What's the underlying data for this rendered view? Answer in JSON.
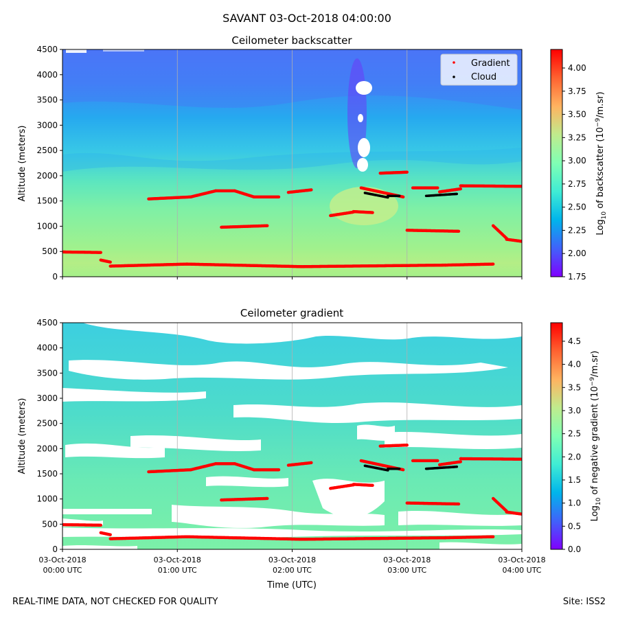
{
  "suptitle": "SAVANT 03-Oct-2018 04:00:00",
  "footer": {
    "left": "REAL-TIME DATA, NOT CHECKED FOR QUALITY",
    "right": "Site: ISS2"
  },
  "colors": {
    "gradient_marker": "#ff0000",
    "cloud_marker": "#000000",
    "grid": "#b0b0b0"
  },
  "x_ticks": [
    {
      "date": "03-Oct-2018",
      "time": "00:00 UTC"
    },
    {
      "date": "03-Oct-2018",
      "time": "01:00 UTC"
    },
    {
      "date": "03-Oct-2018",
      "time": "02:00 UTC"
    },
    {
      "date": "03-Oct-2018",
      "time": "03:00 UTC"
    },
    {
      "date": "03-Oct-2018",
      "time": "04:00 UTC"
    }
  ],
  "y_ticks": [
    "0",
    "500",
    "1000",
    "1500",
    "2000",
    "2500",
    "3000",
    "3500",
    "4000",
    "4500"
  ],
  "chart_data": [
    {
      "type": "heatmap",
      "title": "Ceilometer backscatter",
      "xlabel": "",
      "ylabel": "Altitude (meters)",
      "xlim_utc": [
        "00:00",
        "04:00"
      ],
      "ylim": [
        0,
        4500
      ],
      "grid": "vertical",
      "legend": {
        "location": "upper-right",
        "entries": [
          "Gradient",
          "Cloud"
        ]
      },
      "colormap": "rainbow",
      "colorbar": {
        "label_pre": "Log",
        "label_sub": "10",
        "label_mid": " of backscatter (10",
        "label_sup": "−9",
        "label_post": "/m.sr)",
        "range": [
          1.75,
          4.2
        ],
        "ticks": [
          "1.75",
          "2.00",
          "2.25",
          "2.50",
          "2.75",
          "3.00",
          "3.25",
          "3.50",
          "3.75",
          "4.00"
        ]
      },
      "gradient_series": [
        {
          "x": [
            "00:00",
            "00:20"
          ],
          "y": [
            490,
            480
          ]
        },
        {
          "x": [
            "00:20",
            "00:25"
          ],
          "y": [
            330,
            290
          ]
        },
        {
          "x": [
            "00:25",
            "01:05"
          ],
          "y": [
            210,
            250
          ]
        },
        {
          "x": [
            "01:05",
            "02:05"
          ],
          "y": [
            250,
            200
          ]
        },
        {
          "x": [
            "02:05",
            "03:20"
          ],
          "y": [
            200,
            230
          ]
        },
        {
          "x": [
            "03:20",
            "03:45"
          ],
          "y": [
            230,
            250
          ]
        },
        {
          "x": [
            "00:45",
            "01:07"
          ],
          "y": [
            1540,
            1580
          ]
        },
        {
          "x": [
            "01:07",
            "01:20"
          ],
          "y": [
            1580,
            1700
          ]
        },
        {
          "x": [
            "01:20",
            "01:30"
          ],
          "y": [
            1700,
            1700
          ]
        },
        {
          "x": [
            "01:30",
            "01:40"
          ],
          "y": [
            1700,
            1580
          ]
        },
        {
          "x": [
            "01:40",
            "01:53"
          ],
          "y": [
            1580,
            1580
          ]
        },
        {
          "x": [
            "01:23",
            "01:47"
          ],
          "y": [
            980,
            1010
          ]
        },
        {
          "x": [
            "01:58",
            "02:10"
          ],
          "y": [
            1670,
            1720
          ]
        },
        {
          "x": [
            "02:20",
            "02:32"
          ],
          "y": [
            1210,
            1280
          ]
        },
        {
          "x": [
            "02:32",
            "02:42"
          ],
          "y": [
            1290,
            1270
          ]
        },
        {
          "x": [
            "02:36",
            "02:58"
          ],
          "y": [
            1760,
            1580
          ]
        },
        {
          "x": [
            "02:46",
            "03:00"
          ],
          "y": [
            2050,
            2070
          ]
        },
        {
          "x": [
            "03:00",
            "03:27"
          ],
          "y": [
            920,
            900
          ]
        },
        {
          "x": [
            "03:03",
            "03:16"
          ],
          "y": [
            1760,
            1760
          ]
        },
        {
          "x": [
            "03:17",
            "03:28"
          ],
          "y": [
            1680,
            1740
          ]
        },
        {
          "x": [
            "03:28",
            "04:00"
          ],
          "y": [
            1800,
            1790
          ]
        },
        {
          "x": [
            "03:45",
            "03:52"
          ],
          "y": [
            1010,
            760
          ]
        },
        {
          "x": [
            "03:52",
            "04:00"
          ],
          "y": [
            740,
            700
          ]
        }
      ],
      "cloud_series": [
        {
          "x": [
            "02:38",
            "02:50"
          ],
          "y": [
            1660,
            1570
          ]
        },
        {
          "x": [
            "02:50",
            "02:56"
          ],
          "y": [
            1600,
            1600
          ]
        },
        {
          "x": [
            "03:10",
            "03:26"
          ],
          "y": [
            1600,
            1640
          ]
        }
      ]
    },
    {
      "type": "heatmap",
      "title": "Ceilometer gradient",
      "xlabel": "Time (UTC)",
      "ylabel": "Altitude (meters)",
      "xlim_utc": [
        "00:00",
        "04:00"
      ],
      "ylim": [
        0,
        4500
      ],
      "grid": "vertical",
      "colormap": "rainbow",
      "colorbar": {
        "label_pre": "Log",
        "label_sub": "10",
        "label_mid": " of negative gradient (10",
        "label_sup": "−9",
        "label_post": "/m.sr)",
        "range": [
          0.0,
          4.9
        ],
        "ticks": [
          "0.0",
          "0.5",
          "1.0",
          "1.5",
          "2.0",
          "2.5",
          "3.0",
          "3.5",
          "4.0",
          "4.5"
        ]
      },
      "gradient_series": [
        {
          "x": [
            "00:00",
            "00:20"
          ],
          "y": [
            490,
            480
          ]
        },
        {
          "x": [
            "00:20",
            "00:25"
          ],
          "y": [
            330,
            290
          ]
        },
        {
          "x": [
            "00:25",
            "01:05"
          ],
          "y": [
            210,
            250
          ]
        },
        {
          "x": [
            "01:05",
            "02:05"
          ],
          "y": [
            250,
            200
          ]
        },
        {
          "x": [
            "02:05",
            "03:20"
          ],
          "y": [
            200,
            230
          ]
        },
        {
          "x": [
            "03:20",
            "03:45"
          ],
          "y": [
            230,
            250
          ]
        },
        {
          "x": [
            "00:45",
            "01:07"
          ],
          "y": [
            1540,
            1580
          ]
        },
        {
          "x": [
            "01:07",
            "01:20"
          ],
          "y": [
            1580,
            1700
          ]
        },
        {
          "x": [
            "01:20",
            "01:30"
          ],
          "y": [
            1700,
            1700
          ]
        },
        {
          "x": [
            "01:30",
            "01:40"
          ],
          "y": [
            1700,
            1580
          ]
        },
        {
          "x": [
            "01:40",
            "01:53"
          ],
          "y": [
            1580,
            1580
          ]
        },
        {
          "x": [
            "01:23",
            "01:47"
          ],
          "y": [
            980,
            1010
          ]
        },
        {
          "x": [
            "01:58",
            "02:10"
          ],
          "y": [
            1670,
            1720
          ]
        },
        {
          "x": [
            "02:20",
            "02:32"
          ],
          "y": [
            1210,
            1280
          ]
        },
        {
          "x": [
            "02:32",
            "02:42"
          ],
          "y": [
            1290,
            1270
          ]
        },
        {
          "x": [
            "02:36",
            "02:58"
          ],
          "y": [
            1760,
            1580
          ]
        },
        {
          "x": [
            "02:46",
            "03:00"
          ],
          "y": [
            2050,
            2070
          ]
        },
        {
          "x": [
            "03:00",
            "03:27"
          ],
          "y": [
            920,
            900
          ]
        },
        {
          "x": [
            "03:03",
            "03:16"
          ],
          "y": [
            1760,
            1760
          ]
        },
        {
          "x": [
            "03:17",
            "03:28"
          ],
          "y": [
            1680,
            1740
          ]
        },
        {
          "x": [
            "03:28",
            "04:00"
          ],
          "y": [
            1800,
            1790
          ]
        },
        {
          "x": [
            "03:45",
            "03:52"
          ],
          "y": [
            1010,
            760
          ]
        },
        {
          "x": [
            "03:52",
            "04:00"
          ],
          "y": [
            740,
            700
          ]
        }
      ],
      "cloud_series": [
        {
          "x": [
            "02:38",
            "02:50"
          ],
          "y": [
            1660,
            1570
          ]
        },
        {
          "x": [
            "02:50",
            "02:56"
          ],
          "y": [
            1600,
            1600
          ]
        },
        {
          "x": [
            "03:10",
            "03:26"
          ],
          "y": [
            1600,
            1640
          ]
        }
      ]
    }
  ]
}
